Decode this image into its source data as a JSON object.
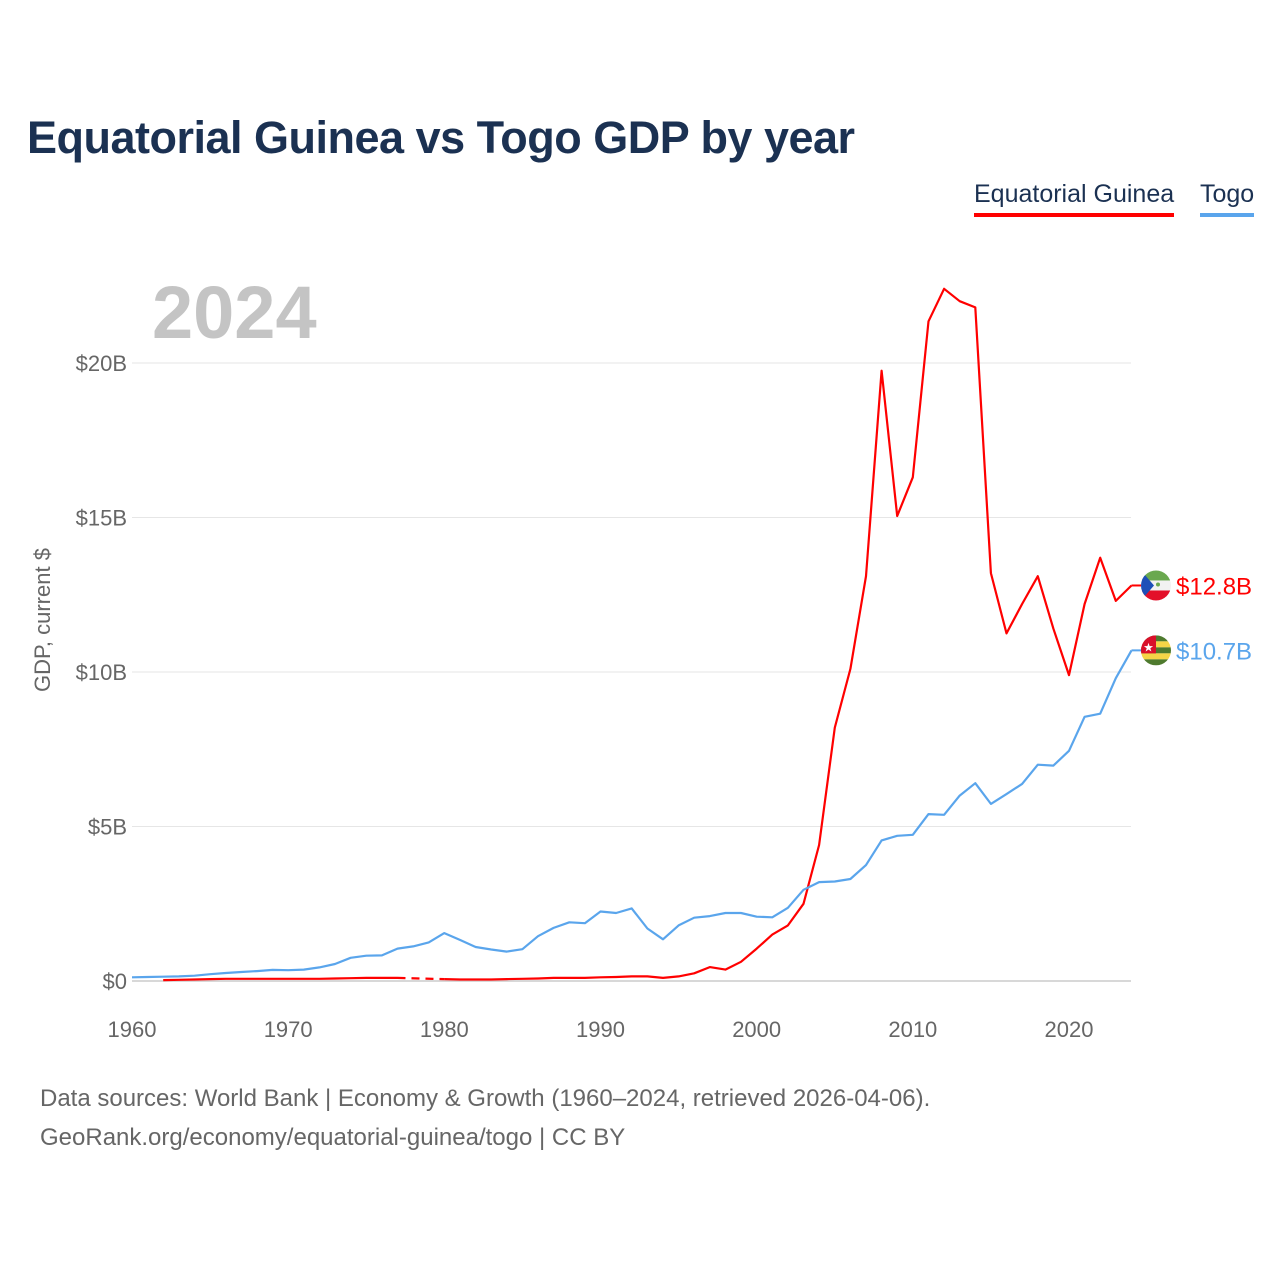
{
  "chart_data": {
    "type": "line",
    "title": "Equatorial Guinea vs Togo GDP by year",
    "ylabel": "GDP, current $",
    "xlabel": "",
    "year_label": "2024",
    "xlim": [
      1960,
      2024
    ],
    "ylim": [
      0,
      23
    ],
    "x_ticks": [
      1960,
      1970,
      1980,
      1990,
      2000,
      2010,
      2020
    ],
    "x_tick_labels": [
      "1960",
      "1970",
      "1980",
      "1990",
      "2000",
      "2010",
      "2020"
    ],
    "y_ticks": [
      0,
      5,
      10,
      15,
      20
    ],
    "y_tick_labels": [
      "$0",
      "$5B",
      "$10B",
      "$15B",
      "$20B"
    ],
    "grid": true,
    "legend_position": "top-right",
    "units": "billion USD",
    "series": [
      {
        "name": "Equatorial Guinea",
        "color": "#ff0000",
        "end_label": "$12.8B",
        "flag": "equatorial-guinea-flag",
        "start_year": 1962,
        "values": [
          0.03,
          0.04,
          0.05,
          0.06,
          0.07,
          0.07,
          0.07,
          0.07,
          0.07,
          0.07,
          0.07,
          0.08,
          0.09,
          0.1,
          0.1,
          0.1,
          null,
          null,
          0.06,
          0.05,
          0.05,
          0.05,
          0.06,
          0.07,
          0.08,
          0.1,
          0.1,
          0.1,
          0.12,
          0.13,
          0.15,
          0.15,
          0.1,
          0.15,
          0.25,
          0.45,
          0.37,
          0.62,
          1.05,
          1.5,
          1.8,
          2.5,
          4.4,
          8.2,
          10.1,
          13.1,
          19.75,
          15.05,
          16.3,
          21.35,
          22.4,
          22.0,
          21.8,
          13.2,
          11.25,
          12.2,
          13.1,
          11.4,
          9.9,
          12.2,
          13.7,
          12.3,
          12.8
        ]
      },
      {
        "name": "Togo",
        "color": "#5aa5ec",
        "end_label": "$10.7B",
        "flag": "togo-flag",
        "start_year": 1960,
        "values": [
          0.12,
          0.13,
          0.14,
          0.15,
          0.17,
          0.22,
          0.26,
          0.29,
          0.32,
          0.36,
          0.35,
          0.37,
          0.44,
          0.55,
          0.75,
          0.82,
          0.83,
          1.05,
          1.12,
          1.25,
          1.55,
          1.33,
          1.1,
          1.02,
          0.95,
          1.03,
          1.45,
          1.72,
          1.9,
          1.87,
          2.25,
          2.2,
          2.35,
          1.7,
          1.35,
          1.8,
          2.05,
          2.1,
          2.2,
          2.2,
          2.08,
          2.06,
          2.37,
          2.95,
          3.2,
          3.22,
          3.3,
          3.75,
          4.55,
          4.7,
          4.73,
          5.4,
          5.38,
          6.0,
          6.4,
          5.73,
          6.05,
          6.38,
          7.0,
          6.97,
          7.45,
          8.55,
          8.65,
          9.8,
          10.7
        ]
      }
    ]
  },
  "footer": {
    "line1": "Data sources: World Bank | Economy & Growth (1960–2024, retrieved 2026-04-06).",
    "line2": "GeoRank.org/economy/equatorial-guinea/togo | CC BY"
  }
}
